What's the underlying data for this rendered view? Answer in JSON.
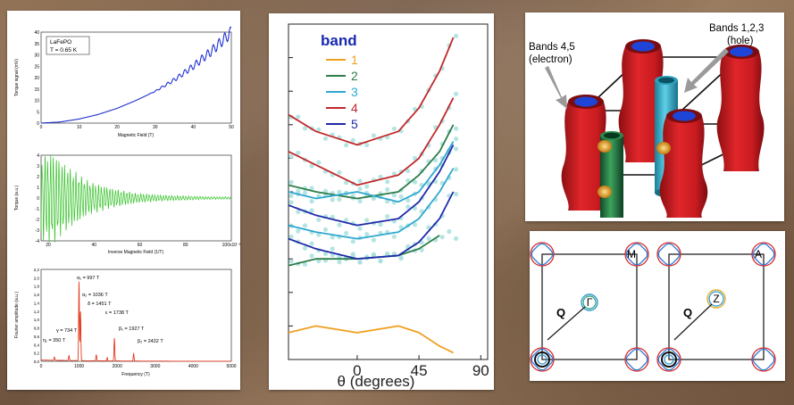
{
  "chart_data": [
    {
      "type": "line",
      "ylabel": "Torque signal (mV)",
      "xlabel": "Magnetic Field (T)",
      "legend": [
        "LaFePO",
        "T = 0.65 K"
      ],
      "xlim": [
        0,
        50
      ],
      "ylim": [
        0,
        40
      ],
      "xticks": [
        "0",
        "10",
        "20",
        "30",
        "40",
        "50"
      ],
      "yticks": [
        "0",
        "5",
        "10",
        "15",
        "20",
        "25",
        "30",
        "35",
        "40"
      ],
      "series": [
        {
          "color": "#1f2fd0",
          "x": [
            0,
            5,
            10,
            15,
            20,
            25,
            30,
            35,
            40,
            45,
            50
          ],
          "y": [
            0,
            0.5,
            1.8,
            3.8,
            6.5,
            10,
            14,
            19,
            25,
            32,
            40
          ]
        }
      ],
      "oscillation_onset_x": 28
    },
    {
      "type": "line",
      "ylabel": "Torque (a.u.)",
      "xlabel": "Inverse Magnetic Field (1/T)",
      "xlim": [
        20,
        100
      ],
      "ylim": [
        -4,
        4
      ],
      "xticks": [
        "20",
        "40",
        "60",
        "80",
        "100x10⁻³"
      ],
      "yticks": [
        "-4",
        "-3",
        "-2",
        "-1",
        "0",
        "1",
        "2",
        "3",
        "4"
      ],
      "series": [
        {
          "color": "#35c228",
          "envelope_x": [
            20,
            25,
            30,
            40,
            50,
            60,
            70,
            80,
            90,
            100
          ],
          "envelope_y": [
            3.5,
            3.8,
            2.8,
            1.4,
            0.8,
            0.4,
            0.25,
            0.18,
            0.12,
            0.1
          ]
        }
      ]
    },
    {
      "type": "line",
      "ylabel": "Fourier amplitude (a.u.)",
      "xlabel": "Frequency (T)",
      "xlim": [
        0,
        5000
      ],
      "ylim": [
        0,
        2.2
      ],
      "xticks": [
        "0",
        "1000",
        "2000",
        "3000",
        "4000",
        "5000"
      ],
      "yticks": [
        "0,0",
        "0,2",
        "0,4",
        "0,6",
        "0,8",
        "1,0",
        "1,2",
        "1,4",
        "1,6",
        "1,8",
        "2,0",
        "2,2"
      ],
      "series": [
        {
          "color": "#e23a1c",
          "peaks_x": [
            350,
            734,
            997,
            1036,
            1451,
            1738,
            1927,
            2432
          ],
          "peaks_y": [
            0.08,
            0.12,
            1.9,
            1.2,
            0.15,
            0.08,
            0.55,
            0.18
          ]
        }
      ],
      "annotations": [
        "α₁ = 997 T",
        "α₂ = 1036 T",
        "δ = 1451 T",
        "ε = 1738 T",
        "γ = 734 T",
        "η₁ = 350 T",
        "β₁ = 1927 T",
        "β₂ = 2432 T"
      ]
    },
    {
      "type": "line",
      "xlabel": "θ (degrees)",
      "legend_title": "band",
      "xticks": [
        "0",
        "45",
        "90"
      ],
      "xlim": [
        -50,
        95
      ],
      "ylim": [
        0,
        1
      ],
      "series": [
        {
          "name": "1",
          "color": "#f0a020",
          "x": [
            -50,
            -30,
            0,
            30,
            45,
            60,
            70
          ],
          "y": [
            0.08,
            0.1,
            0.08,
            0.1,
            0.08,
            0.04,
            0.02
          ]
        },
        {
          "name": "2",
          "color": "#2e7d4a",
          "x": [
            -50,
            -30,
            0,
            30,
            45,
            60
          ],
          "y": [
            0.28,
            0.3,
            0.3,
            0.31,
            0.33,
            0.37
          ]
        },
        {
          "name": "2",
          "color": "#2e7d4a",
          "x": [
            -50,
            -30,
            0,
            30,
            45,
            60,
            70
          ],
          "y": [
            0.52,
            0.5,
            0.48,
            0.5,
            0.55,
            0.62,
            0.7
          ]
        },
        {
          "name": "3",
          "color": "#2ea7d0",
          "x": [
            -50,
            -30,
            0,
            30,
            45,
            60,
            70
          ],
          "y": [
            0.4,
            0.38,
            0.36,
            0.38,
            0.42,
            0.5,
            0.57
          ]
        },
        {
          "name": "3",
          "color": "#2ea7d0",
          "x": [
            -50,
            -30,
            0,
            30,
            45,
            60,
            70
          ],
          "y": [
            0.5,
            0.48,
            0.5,
            0.47,
            0.5,
            0.58,
            0.65
          ]
        },
        {
          "name": "4",
          "color": "#c0282a",
          "x": [
            -50,
            -30,
            0,
            30,
            45,
            60,
            70
          ],
          "y": [
            0.62,
            0.58,
            0.52,
            0.55,
            0.6,
            0.7,
            0.78
          ]
        },
        {
          "name": "4",
          "color": "#c0282a",
          "x": [
            -50,
            -30,
            0,
            30,
            45,
            60,
            70
          ],
          "y": [
            0.73,
            0.68,
            0.64,
            0.68,
            0.75,
            0.86,
            0.96
          ]
        },
        {
          "name": "5",
          "color": "#1e2aa8",
          "x": [
            -50,
            -30,
            0,
            30,
            45,
            60,
            70
          ],
          "y": [
            0.36,
            0.33,
            0.3,
            0.31,
            0.35,
            0.42,
            0.5
          ]
        },
        {
          "name": "5",
          "color": "#1e2aa8",
          "x": [
            -50,
            -30,
            0,
            30,
            45,
            60,
            70
          ],
          "y": [
            0.46,
            0.43,
            0.4,
            0.42,
            0.47,
            0.56,
            0.64
          ]
        }
      ]
    }
  ],
  "diagram3d": {
    "label_left": [
      "Bands 4,5",
      "(electron)"
    ],
    "label_right": [
      "Bands 1,2,3",
      "(hole)"
    ]
  },
  "fermi2d": {
    "labels": [
      "M",
      "Γ",
      "Q",
      "A",
      "Z",
      "Q"
    ]
  }
}
